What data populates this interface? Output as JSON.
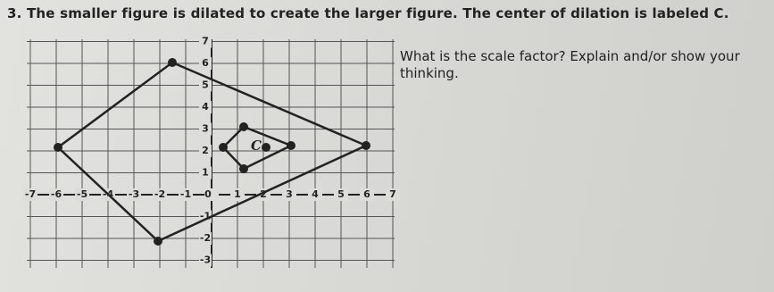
{
  "question": "3. The smaller figure is dilated to create the larger figure. The center of dilation is labeled C.",
  "prompt": "What is the scale factor? Explain and/or show your thinking.",
  "center_label": "C",
  "x_axis_labels": [
    "-7",
    "-6",
    "-5",
    "-4",
    "-3",
    "-2",
    "-1",
    "0",
    "1",
    "2",
    "3",
    "4",
    "5",
    "6",
    "7"
  ],
  "y_axis_labels": [
    "7",
    "6",
    "5",
    "4",
    "3",
    "2",
    "1",
    "-1",
    "-2",
    "-3"
  ]
}
